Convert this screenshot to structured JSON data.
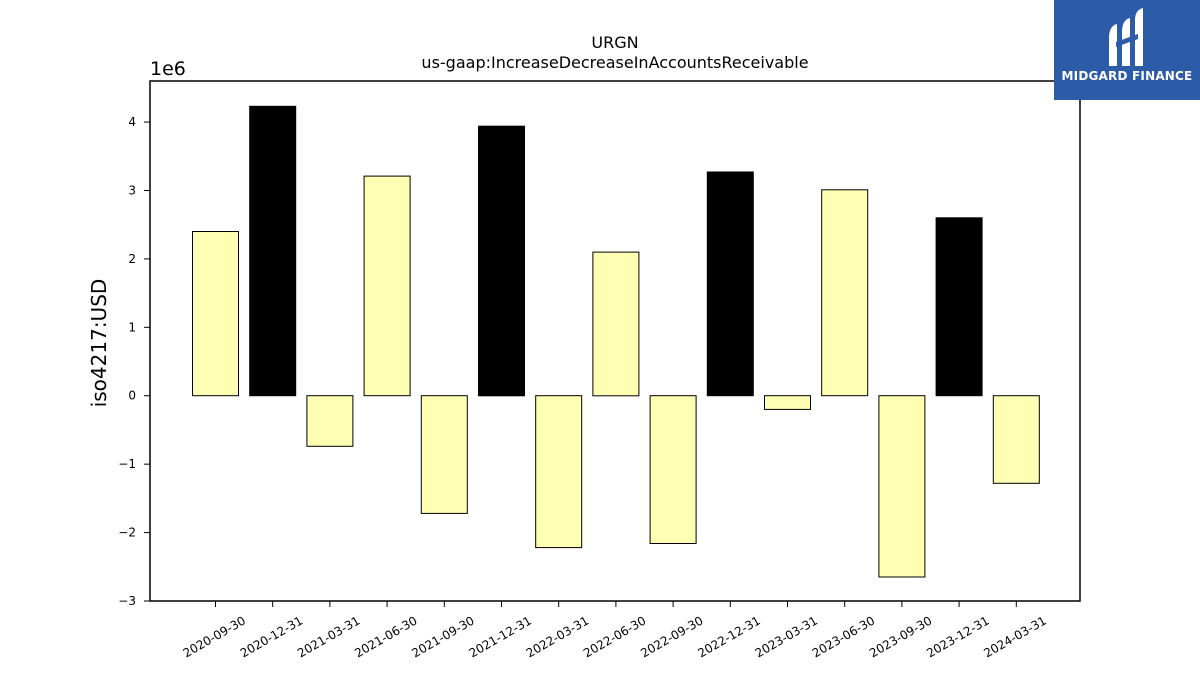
{
  "chart_data": {
    "type": "bar",
    "title": "URGN",
    "subtitle": "us-gaap:IncreaseDecreaseInAccountsReceivable",
    "xlabel": "",
    "ylabel": "iso4217:USD",
    "y_offset_label": "1e6",
    "ylim": [
      -3000000,
      4600000
    ],
    "y_ticks": [
      -3,
      -2,
      -1,
      0,
      1,
      2,
      3,
      4
    ],
    "y_tick_labels": [
      "−3",
      "−2",
      "−1",
      "0",
      "1",
      "2",
      "3",
      "4"
    ],
    "categories": [
      "2020-09-30",
      "2020-12-31",
      "2021-03-31",
      "2021-06-30",
      "2021-09-30",
      "2021-12-31",
      "2022-03-31",
      "2022-06-30",
      "2022-09-30",
      "2022-12-31",
      "2023-03-31",
      "2023-06-30",
      "2023-09-30",
      "2023-12-31",
      "2024-03-31"
    ],
    "values": [
      2400000,
      4230000,
      -740000,
      3210000,
      -1720000,
      3940000,
      -2220000,
      2100000,
      -2160000,
      3270000,
      -200000,
      3010000,
      -2650000,
      2600000,
      -1280000
    ],
    "bar_colors": [
      "#ffffb3",
      "#000000",
      "#ffffb3",
      "#ffffb3",
      "#ffffb3",
      "#000000",
      "#ffffb3",
      "#ffffb3",
      "#ffffb3",
      "#000000",
      "#ffffb3",
      "#ffffb3",
      "#ffffb3",
      "#000000",
      "#ffffb3"
    ],
    "grid": false,
    "legend": "none"
  },
  "logo": {
    "text": "MIDGARD FINANCE",
    "background": "#2c5ba8",
    "text_color": "#ffffff"
  }
}
